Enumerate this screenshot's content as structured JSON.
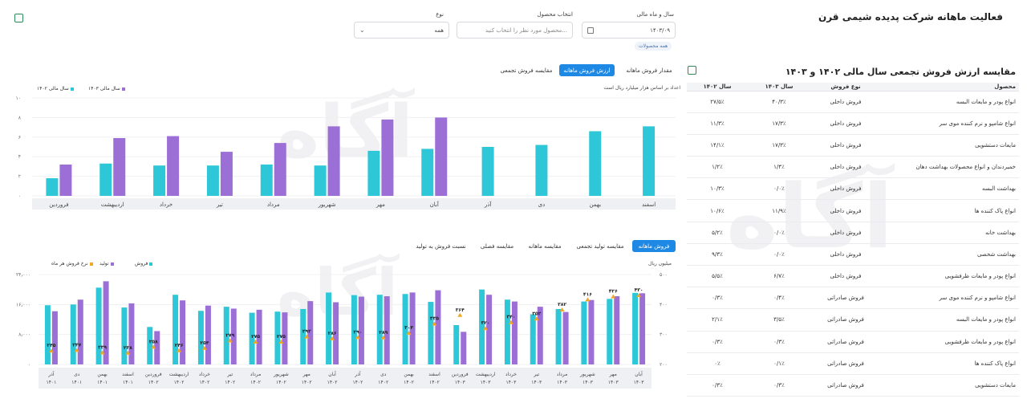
{
  "page": {
    "title": "فعالیت ماهانه شرکت پدیده شیمی قرن",
    "watermark": "آگاه"
  },
  "filters": {
    "year_month_label": "سال و ماه مالی",
    "year_month_value": "۱۴۰۳/۰۹",
    "product_label": "انتخاب محصول",
    "product_placeholder": "محصول مورد نظر را انتخاب کنید...",
    "type_label": "نوع",
    "type_value": "همه",
    "chip_all_products": "همه محصولات"
  },
  "chart1": {
    "tabs": [
      "مقدار فروش ماهانه",
      "ارزش فروش ماهانه",
      "مقایسه فروش تجمعی"
    ],
    "active_tab": 1,
    "note": "اعداد بر اساس هزار میلیارد ریال است",
    "legend": [
      "سال مالی ۱۴۰۳",
      "سال مالی ۱۴۰۲"
    ],
    "colors": {
      "y1403": "#9b6fd6",
      "y1402": "#2ec7d8"
    }
  },
  "chart2": {
    "tabs": [
      "فروش ماهانه",
      "مقایسه تولید تجمعی",
      "مقایسه ماهانه",
      "مقایسه فصلی",
      "نسبت فروش به تولید"
    ],
    "active_tab": 0,
    "legend": [
      "فروش",
      "تولید",
      "نرخ فروش هر ماه"
    ],
    "unit_right": "میلیون ریال",
    "colors": {
      "sales": "#2ec7d8",
      "production": "#9b6fd6",
      "rate": "#f5a623"
    }
  },
  "table": {
    "title": "مقایسه ارزش فروش تجمعی سال مالی ۱۴۰۲ و ۱۴۰۳",
    "headers": [
      "محصول",
      "نوع فروش",
      "سال ۱۴۰۳",
      "سال ۱۴۰۲"
    ],
    "rows": [
      [
        "انواع پودر و مایعات البسه",
        "فروش داخلی",
        "۴۰/۳٪",
        "۲۷/۵٪"
      ],
      [
        "انواع شامپو و نرم کننده موی سر",
        "فروش داخلی",
        "۱۷/۳٪",
        "۱۱/۳٪"
      ],
      [
        "مایعات دستشویی",
        "فروش داخلی",
        "۱۷/۳٪",
        "۱۴/۱٪"
      ],
      [
        "خمیردندان و انواع محصولات بهداشت دهان",
        "فروش داخلی",
        "۱/۴٪",
        "۱/۲٪"
      ],
      [
        "بهداشت البسه",
        "فروش داخلی",
        "۰/۰٪",
        "۱۰/۳٪"
      ],
      [
        "انواع پاک کننده ها",
        "فروش داخلی",
        "۱۱/۹٪",
        "۱۰/۶٪"
      ],
      [
        "بهداشت خانه",
        "فروش داخلی",
        "۰/۰٪",
        "۵/۲٪"
      ],
      [
        "بهداشت شخصی",
        "فروش داخلی",
        "۰/۰٪",
        "۹/۳٪"
      ],
      [
        "انواع پودر و مایعات ظرفشویی",
        "فروش داخلی",
        "۶/۷٪",
        "۵/۵٪"
      ],
      [
        "انواع شامپو و نرم کننده موی سر",
        "فروش صادراتی",
        "۰/۴٪",
        "۰/۳٪"
      ],
      [
        "انواع پودر و مایعات البسه",
        "فروش صادراتی",
        "۳/۵٪",
        "۲/۱٪"
      ],
      [
        "انواع پودر و مایعات ظرفشویی",
        "فروش صادراتی",
        "۰/۳٪",
        "۰/۳٪"
      ],
      [
        "انواع پاک کننده ها",
        "فروش صادراتی",
        "۰/۱٪",
        "۰٪"
      ],
      [
        "مایعات دستشویی",
        "فروش صادراتی",
        "۰/۳٪",
        "۰/۳٪"
      ]
    ]
  },
  "chart_data": [
    {
      "type": "bar",
      "categories": [
        "اسفند",
        "بهمن",
        "دی",
        "آذر",
        "آبان",
        "مهر",
        "شهریور",
        "مرداد",
        "تیر",
        "خرداد",
        "اردیبهشت",
        "فروردین"
      ],
      "ylim": [
        0,
        10
      ],
      "yticks": [
        0,
        2,
        4,
        6,
        8,
        10
      ],
      "ytick_labels": [
        "۰",
        "۲",
        "۴",
        "۶",
        "۸",
        "۱۰"
      ],
      "series": [
        {
          "name": "سال مالی ۱۴۰۲",
          "values": [
            7.1,
            6.6,
            5.2,
            5.0,
            4.8,
            4.6,
            3.1,
            3.2,
            3.1,
            3.1,
            3.3,
            1.8
          ]
        },
        {
          "name": "سال مالی ۱۴۰۳",
          "values": [
            null,
            null,
            null,
            null,
            8.0,
            7.8,
            7.1,
            5.4,
            4.5,
            6.1,
            5.9,
            3.2
          ]
        }
      ]
    },
    {
      "type": "bar",
      "categories": [
        "آذر ۱۴۰۱",
        "دی ۱۴۰۱",
        "بهمن ۱۴۰۱",
        "اسفند ۱۴۰۱",
        "فروردین ۱۴۰۲",
        "اردیبهشت ۱۴۰۲",
        "خرداد ۱۴۰۲",
        "تیر ۱۴۰۲",
        "مرداد ۱۴۰۲",
        "شهریور ۱۴۰۲",
        "مهر ۱۴۰۲",
        "آبان ۱۴۰۲",
        "آذر ۱۴۰۲",
        "دی ۱۴۰۲",
        "بهمن ۱۴۰۲",
        "اسفند ۱۴۰۲",
        "فروردین ۱۴۰۳",
        "اردیبهشت ۱۴۰۳",
        "خرداد ۱۴۰۳",
        "تیر ۱۴۰۳",
        "مرداد ۱۴۰۳",
        "شهریور ۱۴۰۳",
        "مهر ۱۴۰۳",
        "آبان ۱۴۰۳"
      ],
      "category_labels": [
        [
          "آذر",
          "۱۴۰۱"
        ],
        [
          "دی",
          "۱۴۰۱"
        ],
        [
          "بهمن",
          "۱۴۰۱"
        ],
        [
          "اسفند",
          "۱۴۰۱"
        ],
        [
          "فروردین",
          "۱۴۰۲"
        ],
        [
          "اردیبهشت",
          "۱۴۰۲"
        ],
        [
          "خرداد",
          "۱۴۰۲"
        ],
        [
          "تیر",
          "۱۴۰۲"
        ],
        [
          "مرداد",
          "۱۴۰۲"
        ],
        [
          "شهریور",
          "۱۴۰۲"
        ],
        [
          "مهر",
          "۱۴۰۲"
        ],
        [
          "آبان",
          "۱۴۰۲"
        ],
        [
          "آذر",
          "۱۴۰۲"
        ],
        [
          "دی",
          "۱۴۰۲"
        ],
        [
          "بهمن",
          "۱۴۰۲"
        ],
        [
          "اسفند",
          "۱۴۰۲"
        ],
        [
          "فروردین",
          "۱۴۰۳"
        ],
        [
          "اردیبهشت",
          "۱۴۰۳"
        ],
        [
          "خرداد",
          "۱۴۰۳"
        ],
        [
          "تیر",
          "۱۴۰۳"
        ],
        [
          "مرداد",
          "۱۴۰۳"
        ],
        [
          "شهریور",
          "۱۴۰۳"
        ],
        [
          "مهر",
          "۱۴۰۳"
        ],
        [
          "آبان",
          "۱۴۰۳"
        ]
      ],
      "y_left": {
        "ylim": [
          0,
          24000
        ],
        "ticks": [
          0,
          8000,
          16000,
          24000
        ],
        "tick_labels": [
          "۰",
          "۸٫۰۰۰",
          "۱۶٫۰۰۰",
          "۲۴٫۰۰۰"
        ]
      },
      "y_right": {
        "label": "میلیون ریال",
        "ylim": [
          200,
          500
        ],
        "ticks": [
          200,
          300,
          400,
          500
        ],
        "tick_labels": [
          "۲۰۰",
          "۳۰۰",
          "۴۰۰",
          "۵۰۰"
        ]
      },
      "series": [
        {
          "name": "فروش",
          "values": [
            15800,
            16000,
            20500,
            15200,
            10000,
            18600,
            14300,
            15400,
            13800,
            14100,
            14800,
            19200,
            18500,
            18600,
            18800,
            16700,
            10500,
            20000,
            17300,
            13400,
            14800,
            16800,
            17500,
            19100
          ]
        },
        {
          "name": "تولید",
          "values": [
            14200,
            17300,
            22200,
            16300,
            8900,
            17100,
            15700,
            14900,
            14600,
            13900,
            16900,
            16600,
            18100,
            18200,
            19200,
            19800,
            8700,
            18600,
            16800,
            15400,
            14000,
            17200,
            18200,
            19000
          ]
        },
        {
          "name": "نرخ فروش هر ماه",
          "values": [
            245,
            247,
            239,
            238,
            258,
            246,
            254,
            279,
            275,
            275,
            292,
            286,
            290,
            289,
            304,
            335,
            364,
            320,
            340,
            352,
            382,
            416,
            426,
            430
          ],
          "labels": [
            "۲۴۵",
            "۲۴۷",
            "۲۳۹",
            "۲۳۸",
            "۲۵۸",
            "۲۴۶",
            "۲۵۴",
            "۲۷۹",
            "۲۷۵",
            "۲۷۵",
            "۲۹۲",
            "۲۸۶",
            "۲۹۰",
            "۲۸۹",
            "۳۰۴",
            "۳۳۵",
            "۳۶۴",
            "۳۲۰",
            "۳۴۰",
            "۳۵۲",
            "۳۸۲",
            "۴۱۶",
            "۴۲۶",
            "۴۳۰"
          ]
        }
      ]
    }
  ]
}
